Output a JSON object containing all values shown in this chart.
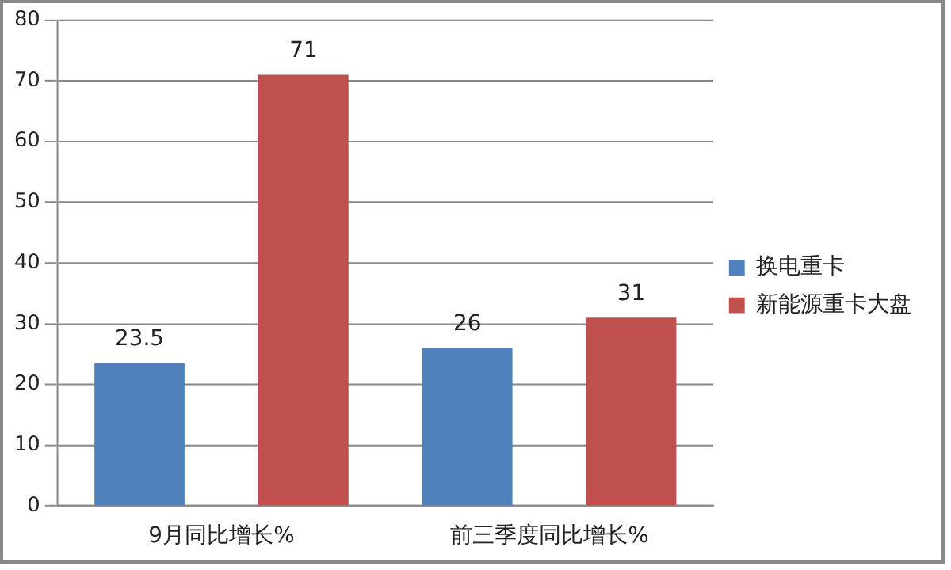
{
  "chart_data": {
    "type": "bar",
    "categories": [
      "9月同比增长%",
      "前三季度同比增长%"
    ],
    "series": [
      {
        "name": "换电重卡",
        "color": "#4f81bd",
        "values": [
          23.5,
          26
        ]
      },
      {
        "name": "新能源重卡大盘",
        "color": "#c0504d",
        "values": [
          71,
          31
        ]
      }
    ],
    "ylim": [
      0,
      80
    ],
    "yticks": [
      0,
      10,
      20,
      30,
      40,
      50,
      60,
      70,
      80
    ],
    "grid": "y",
    "legend": "right",
    "data_labels": true
  }
}
